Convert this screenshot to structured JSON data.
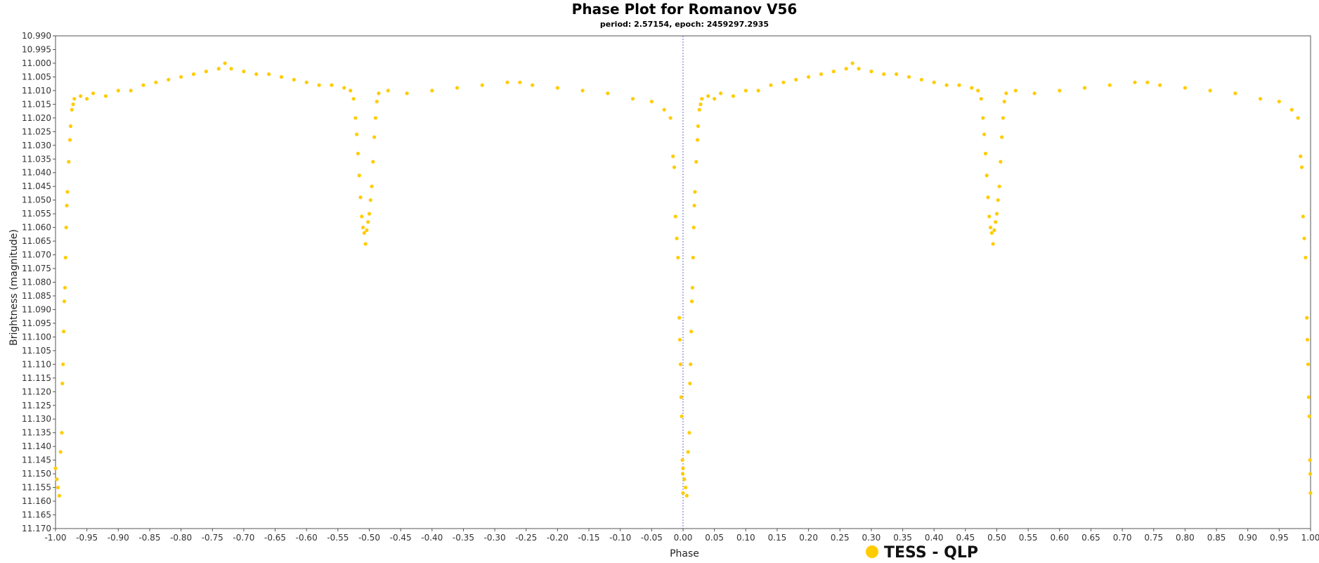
{
  "chart_data": {
    "type": "scatter",
    "title": "Phase Plot for Romanov V56",
    "subtitle": "period: 2.57154, epoch: 2459297.2935",
    "xlabel": "Phase",
    "ylabel": "Brightness (magnitude)",
    "xlim": [
      -1.0,
      1.0
    ],
    "ylim": [
      10.99,
      11.17
    ],
    "y_inverted": true,
    "grid": false,
    "x_ticks": [
      -1.0,
      -0.95,
      -0.9,
      -0.85,
      -0.8,
      -0.75,
      -0.7,
      -0.65,
      -0.6,
      -0.55,
      -0.5,
      -0.45,
      -0.4,
      -0.35,
      -0.3,
      -0.25,
      -0.2,
      -0.15,
      -0.1,
      -0.05,
      0.0,
      0.05,
      0.1,
      0.15,
      0.2,
      0.25,
      0.3,
      0.35,
      0.4,
      0.45,
      0.5,
      0.55,
      0.6,
      0.65,
      0.7,
      0.75,
      0.8,
      0.85,
      0.9,
      0.95,
      1.0
    ],
    "y_ticks": [
      10.99,
      10.995,
      11.0,
      11.005,
      11.01,
      11.015,
      11.02,
      11.025,
      11.03,
      11.035,
      11.04,
      11.045,
      11.05,
      11.055,
      11.06,
      11.065,
      11.07,
      11.075,
      11.08,
      11.085,
      11.09,
      11.095,
      11.1,
      11.105,
      11.11,
      11.115,
      11.12,
      11.125,
      11.13,
      11.135,
      11.14,
      11.145,
      11.15,
      11.155,
      11.16,
      11.165,
      11.17
    ],
    "x_tick_decimals": 2,
    "y_tick_decimals": 3,
    "legend_position": "bottom-center",
    "series": [
      {
        "name": "TESS - QLP",
        "color": "#ffcc00",
        "phase_repeat": true,
        "points": [
          [
            0.01,
            11.135
          ],
          [
            0.011,
            11.117
          ],
          [
            0.012,
            11.11
          ],
          [
            0.013,
            11.098
          ],
          [
            0.014,
            11.087
          ],
          [
            0.015,
            11.082
          ],
          [
            0.016,
            11.071
          ],
          [
            0.017,
            11.06
          ],
          [
            0.018,
            11.052
          ],
          [
            0.019,
            11.047
          ],
          [
            0.021,
            11.036
          ],
          [
            0.023,
            11.028
          ],
          [
            0.024,
            11.023
          ],
          [
            0.026,
            11.017
          ],
          [
            0.028,
            11.015
          ],
          [
            0.03,
            11.013
          ],
          [
            0.04,
            11.012
          ],
          [
            0.05,
            11.013
          ],
          [
            0.06,
            11.011
          ],
          [
            0.08,
            11.012
          ],
          [
            0.1,
            11.01
          ],
          [
            0.12,
            11.01
          ],
          [
            0.14,
            11.008
          ],
          [
            0.16,
            11.007
          ],
          [
            0.18,
            11.006
          ],
          [
            0.2,
            11.005
          ],
          [
            0.22,
            11.004
          ],
          [
            0.24,
            11.003
          ],
          [
            0.26,
            11.002
          ],
          [
            0.27,
            11.0
          ],
          [
            0.28,
            11.002
          ],
          [
            0.3,
            11.003
          ],
          [
            0.32,
            11.004
          ],
          [
            0.34,
            11.004
          ],
          [
            0.36,
            11.005
          ],
          [
            0.38,
            11.006
          ],
          [
            0.4,
            11.007
          ],
          [
            0.42,
            11.008
          ],
          [
            0.44,
            11.008
          ],
          [
            0.46,
            11.009
          ],
          [
            0.47,
            11.01
          ],
          [
            0.475,
            11.013
          ],
          [
            0.478,
            11.02
          ],
          [
            0.48,
            11.026
          ],
          [
            0.482,
            11.033
          ],
          [
            0.484,
            11.041
          ],
          [
            0.486,
            11.049
          ],
          [
            0.488,
            11.056
          ],
          [
            0.49,
            11.06
          ],
          [
            0.492,
            11.062
          ],
          [
            0.494,
            11.066
          ],
          [
            0.496,
            11.061
          ],
          [
            0.498,
            11.058
          ],
          [
            0.5,
            11.055
          ],
          [
            0.502,
            11.05
          ],
          [
            0.504,
            11.045
          ],
          [
            0.506,
            11.036
          ],
          [
            0.508,
            11.027
          ],
          [
            0.51,
            11.02
          ],
          [
            0.512,
            11.014
          ],
          [
            0.515,
            11.011
          ],
          [
            0.53,
            11.01
          ],
          [
            0.56,
            11.011
          ],
          [
            0.6,
            11.01
          ],
          [
            0.64,
            11.009
          ],
          [
            0.68,
            11.008
          ],
          [
            0.72,
            11.007
          ],
          [
            0.74,
            11.007
          ],
          [
            0.76,
            11.008
          ],
          [
            0.8,
            11.009
          ],
          [
            0.84,
            11.01
          ],
          [
            0.88,
            11.011
          ],
          [
            0.92,
            11.013
          ],
          [
            0.95,
            11.014
          ],
          [
            0.97,
            11.017
          ],
          [
            0.98,
            11.02
          ],
          [
            0.984,
            11.034
          ],
          [
            0.986,
            11.038
          ],
          [
            0.988,
            11.056
          ],
          [
            0.99,
            11.064
          ],
          [
            0.992,
            11.071
          ],
          [
            0.994,
            11.093
          ],
          [
            0.995,
            11.101
          ],
          [
            0.996,
            11.11
          ],
          [
            0.997,
            11.122
          ],
          [
            0.998,
            11.129
          ],
          [
            0.999,
            11.145
          ],
          [
            0.9995,
            11.15
          ],
          [
            0.9999,
            11.157
          ],
          [
            0.0,
            11.148
          ],
          [
            0.002,
            11.152
          ],
          [
            0.004,
            11.155
          ],
          [
            0.006,
            11.158
          ],
          [
            0.008,
            11.142
          ]
        ]
      }
    ]
  }
}
